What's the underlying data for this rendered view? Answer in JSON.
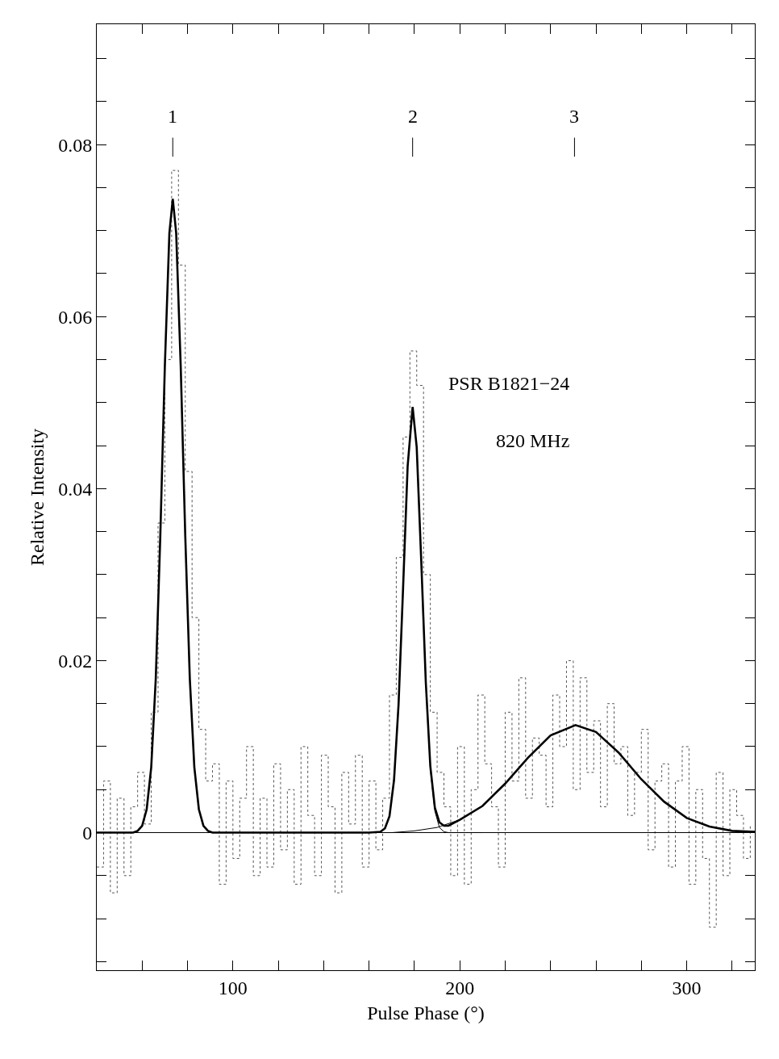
{
  "chart_data": {
    "type": "line",
    "xlabel": "Pulse Phase (°)",
    "ylabel": "Relative Intensity",
    "xlim": [
      40,
      330
    ],
    "xticks": [
      {
        "value": 60,
        "label": null
      },
      {
        "value": 80,
        "label": null
      },
      100,
      {
        "value": 120,
        "label": null
      },
      {
        "value": 140,
        "label": null
      },
      {
        "value": 160,
        "label": null
      },
      {
        "value": 180,
        "label": null
      },
      200,
      {
        "value": 220,
        "label": null
      },
      {
        "value": 240,
        "label": null
      },
      {
        "value": 260,
        "label": null
      },
      {
        "value": 280,
        "label": null
      },
      300,
      {
        "value": 320,
        "label": null
      }
    ],
    "ylim": [
      -0.016,
      0.094
    ],
    "yticks": [
      {
        "value": -0.015,
        "label": null
      },
      {
        "value": -0.01,
        "label": null
      },
      {
        "value": -0.005,
        "label": null
      },
      0,
      {
        "value": 0.005,
        "label": null
      },
      {
        "value": 0.01,
        "label": null
      },
      {
        "value": 0.015,
        "label": null
      },
      0.02,
      {
        "value": 0.025,
        "label": null
      },
      {
        "value": 0.03,
        "label": null
      },
      {
        "value": 0.035,
        "label": null
      },
      0.04,
      {
        "value": 0.045,
        "label": null
      },
      {
        "value": 0.05,
        "label": null
      },
      {
        "value": 0.055,
        "label": null
      },
      0.06,
      {
        "value": 0.065,
        "label": null
      },
      {
        "value": 0.07,
        "label": null
      },
      {
        "value": 0.075,
        "label": null
      },
      0.08,
      {
        "value": 0.085,
        "label": null
      },
      {
        "value": 0.09,
        "label": null
      }
    ],
    "marker": "none",
    "series": [
      {
        "type": "step",
        "line_style": "dotted",
        "color": "#555555",
        "x": [
          40,
          43,
          46,
          49,
          52,
          55,
          58,
          61,
          64,
          67,
          70,
          73,
          76,
          79,
          82,
          85,
          88,
          91,
          94,
          97,
          100,
          103,
          106,
          109,
          112,
          115,
          118,
          121,
          124,
          127,
          130,
          133,
          136,
          139,
          142,
          145,
          148,
          151,
          154,
          157,
          160,
          163,
          166,
          169,
          172,
          175,
          178,
          181,
          184,
          187,
          190,
          193,
          196,
          199,
          202,
          205,
          208,
          211,
          214,
          217,
          220,
          223,
          226,
          229,
          232,
          235,
          238,
          241,
          244,
          247,
          250,
          253,
          256,
          259,
          262,
          265,
          268,
          271,
          274,
          277,
          280,
          283,
          286,
          289,
          292,
          295,
          298,
          301,
          304,
          307,
          310,
          313,
          316,
          319,
          322,
          325,
          328
        ],
        "values": [
          -0.004,
          0.006,
          -0.007,
          0.004,
          -0.005,
          0.003,
          0.007,
          0.001,
          0.014,
          0.036,
          0.055,
          0.077,
          0.066,
          0.042,
          0.025,
          0.012,
          0.006,
          0.008,
          -0.006,
          0.006,
          -0.003,
          0.004,
          0.01,
          -0.005,
          0.004,
          -0.004,
          0.008,
          -0.002,
          0.005,
          -0.006,
          0.01,
          0.002,
          -0.005,
          0.009,
          0.003,
          -0.007,
          0.007,
          0.001,
          0.009,
          -0.004,
          0.006,
          -0.002,
          0.004,
          0.016,
          0.032,
          0.046,
          0.056,
          0.052,
          0.03,
          0.014,
          0.007,
          0.003,
          -0.005,
          0.01,
          -0.006,
          0.005,
          0.016,
          0.008,
          0.003,
          -0.004,
          0.014,
          0.006,
          0.018,
          0.004,
          0.011,
          0.009,
          0.003,
          0.016,
          0.01,
          0.02,
          0.005,
          0.018,
          0.007,
          0.013,
          0.003,
          0.015,
          0.008,
          0.01,
          0.002,
          0.007,
          0.012,
          -0.002,
          0.006,
          0.008,
          -0.004,
          0.006,
          0.01,
          -0.006,
          0.005,
          -0.003,
          -0.011,
          0.007,
          -0.005,
          0.005,
          0.002,
          -0.003,
          0.001
        ]
      },
      {
        "line_style": "solid",
        "color": "#000000",
        "x": [
          40,
          50,
          56,
          58,
          60,
          62,
          64,
          66,
          68,
          70,
          72,
          73.5,
          75,
          77,
          79,
          81,
          83,
          85,
          87,
          89,
          91,
          100,
          120,
          140,
          160,
          165,
          167,
          169,
          171,
          173,
          175,
          177,
          179.2,
          181,
          183,
          185,
          187,
          189,
          191,
          193,
          195,
          200,
          210,
          220,
          230,
          240,
          251,
          260,
          270,
          280,
          290,
          300,
          310,
          320,
          330
        ],
        "values": [
          0,
          0,
          0,
          0.0002,
          0.0008,
          0.0027,
          0.0076,
          0.0179,
          0.0345,
          0.0542,
          0.0697,
          0.0737,
          0.0697,
          0.0542,
          0.0345,
          0.0179,
          0.0076,
          0.0027,
          0.0008,
          0.0002,
          0,
          0,
          0,
          0,
          0,
          0.0001,
          0.0005,
          0.0019,
          0.0061,
          0.0149,
          0.0285,
          0.0426,
          0.0495,
          0.0448,
          0.0316,
          0.0175,
          0.0077,
          0.0029,
          0.0012,
          0.0008,
          0.0008,
          0.0015,
          0.0031,
          0.0057,
          0.0087,
          0.0113,
          0.0125,
          0.0117,
          0.0093,
          0.0062,
          0.0036,
          0.0017,
          0.0007,
          0.0002,
          0.0001
        ]
      },
      {
        "line_style": "solid",
        "color": "#000000",
        "x": [
          187,
          189,
          191,
          193,
          195,
          200,
          210
        ],
        "values": [
          0.0074,
          0.0025,
          0.0006,
          0.0001,
          0,
          0,
          0
        ]
      },
      {
        "line_style": "solid",
        "color": "#000000",
        "x": [
          160,
          170,
          180,
          190,
          200,
          210,
          220,
          230,
          240,
          251,
          260,
          270,
          280,
          290,
          300,
          310,
          320,
          330
        ],
        "values": [
          0,
          0,
          0.0002,
          0.0006,
          0.0015,
          0.0031,
          0.0057,
          0.0087,
          0.0113,
          0.0125,
          0.0117,
          0.0093,
          0.0062,
          0.0036,
          0.0017,
          0.0007,
          0.0002,
          0.0001
        ]
      }
    ],
    "ref_lines": [
      {
        "axis": "y",
        "value": 0,
        "color": "#000000"
      }
    ],
    "annotations": [
      "1",
      "2",
      "3",
      "PSR B1821−24",
      "820 MHz"
    ]
  }
}
